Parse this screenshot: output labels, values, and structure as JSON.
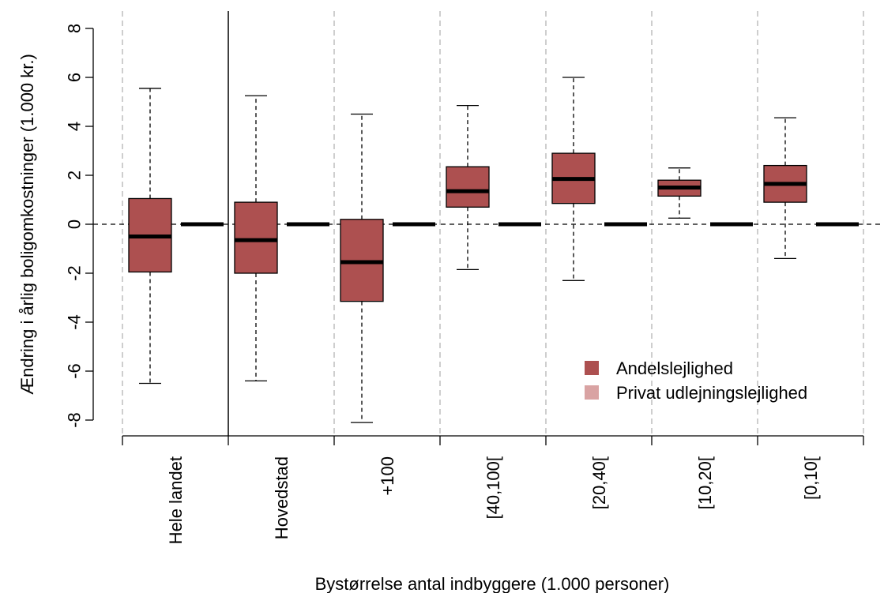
{
  "chart_data": {
    "type": "boxplot",
    "xlabel": "Bystørrelse antal indbyggere (1.000 personer)",
    "ylabel": "Ændring i årlig boligomkostninger (1.000 kr.)",
    "ylim": [
      -8.4,
      8.6
    ],
    "yticks": [
      8,
      6,
      4,
      2,
      0,
      -2,
      -4,
      -6,
      -8
    ],
    "ytick_labels": [
      "8",
      "6",
      "4",
      "2",
      "0",
      "-2",
      "-4",
      "-6",
      "-8"
    ],
    "categories": [
      "Hele landet",
      "Hovedstad",
      "+100",
      "[40,100[",
      "[20,40[",
      "[10,20[",
      "[0,10["
    ],
    "series": [
      {
        "name": "Andelslejlighed",
        "color": "#AD5050",
        "boxes": [
          {
            "whisker_low": -6.5,
            "q1": -1.95,
            "median": -0.5,
            "q3": 1.05,
            "whisker_high": 5.55
          },
          {
            "whisker_low": -6.4,
            "q1": -2.0,
            "median": -0.65,
            "q3": 0.9,
            "whisker_high": 5.25
          },
          {
            "whisker_low": -8.1,
            "q1": -3.15,
            "median": -1.55,
            "q3": 0.2,
            "whisker_high": 4.5
          },
          {
            "whisker_low": -1.85,
            "q1": 0.7,
            "median": 1.35,
            "q3": 2.35,
            "whisker_high": 4.85
          },
          {
            "whisker_low": -2.3,
            "q1": 0.85,
            "median": 1.85,
            "q3": 2.9,
            "whisker_high": 6.0
          },
          {
            "whisker_low": 0.25,
            "q1": 1.15,
            "median": 1.5,
            "q3": 1.8,
            "whisker_high": 2.3
          },
          {
            "whisker_low": -1.4,
            "q1": 0.9,
            "median": 1.65,
            "q3": 2.4,
            "whisker_high": 4.35
          }
        ]
      },
      {
        "name": "Privat udlejningslejlighed",
        "color": "#D9A3A3",
        "boxes": [
          {
            "whisker_low": 0,
            "q1": 0,
            "median": 0,
            "q3": 0,
            "whisker_high": 0
          },
          {
            "whisker_low": 0,
            "q1": 0,
            "median": 0,
            "q3": 0,
            "whisker_high": 0
          },
          {
            "whisker_low": 0,
            "q1": 0,
            "median": 0,
            "q3": 0,
            "whisker_high": 0
          },
          {
            "whisker_low": 0,
            "q1": 0,
            "median": 0,
            "q3": 0,
            "whisker_high": 0
          },
          {
            "whisker_low": 0,
            "q1": 0,
            "median": 0,
            "q3": 0,
            "whisker_high": 0
          },
          {
            "whisker_low": 0,
            "q1": 0,
            "median": 0,
            "q3": 0,
            "whisker_high": 0
          },
          {
            "whisker_low": 0,
            "q1": 0,
            "median": 0,
            "q3": 0,
            "whisker_high": 0
          }
        ]
      }
    ],
    "reference_line_y": 0,
    "legend_position": "bottom-right",
    "grid": "vertical dashed category separators"
  }
}
